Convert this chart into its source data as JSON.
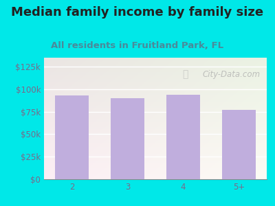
{
  "title": "Median family income by family size",
  "subtitle": "All residents in Fruitland Park, FL",
  "categories": [
    "2",
    "3",
    "4",
    "5+"
  ],
  "values": [
    93000,
    90000,
    93500,
    77000
  ],
  "bar_color": "#c0aedd",
  "background_color": "#00e8e8",
  "title_color": "#222222",
  "subtitle_color": "#4a8a9a",
  "tick_color": "#7a6a8a",
  "ytick_labels": [
    "$0",
    "$25k",
    "$50k",
    "$75k",
    "$100k",
    "$125k"
  ],
  "ytick_values": [
    0,
    25000,
    50000,
    75000,
    100000,
    125000
  ],
  "ylim": [
    0,
    135000
  ],
  "watermark": "City-Data.com",
  "title_fontsize": 13,
  "subtitle_fontsize": 9.5,
  "tick_fontsize": 8.5
}
